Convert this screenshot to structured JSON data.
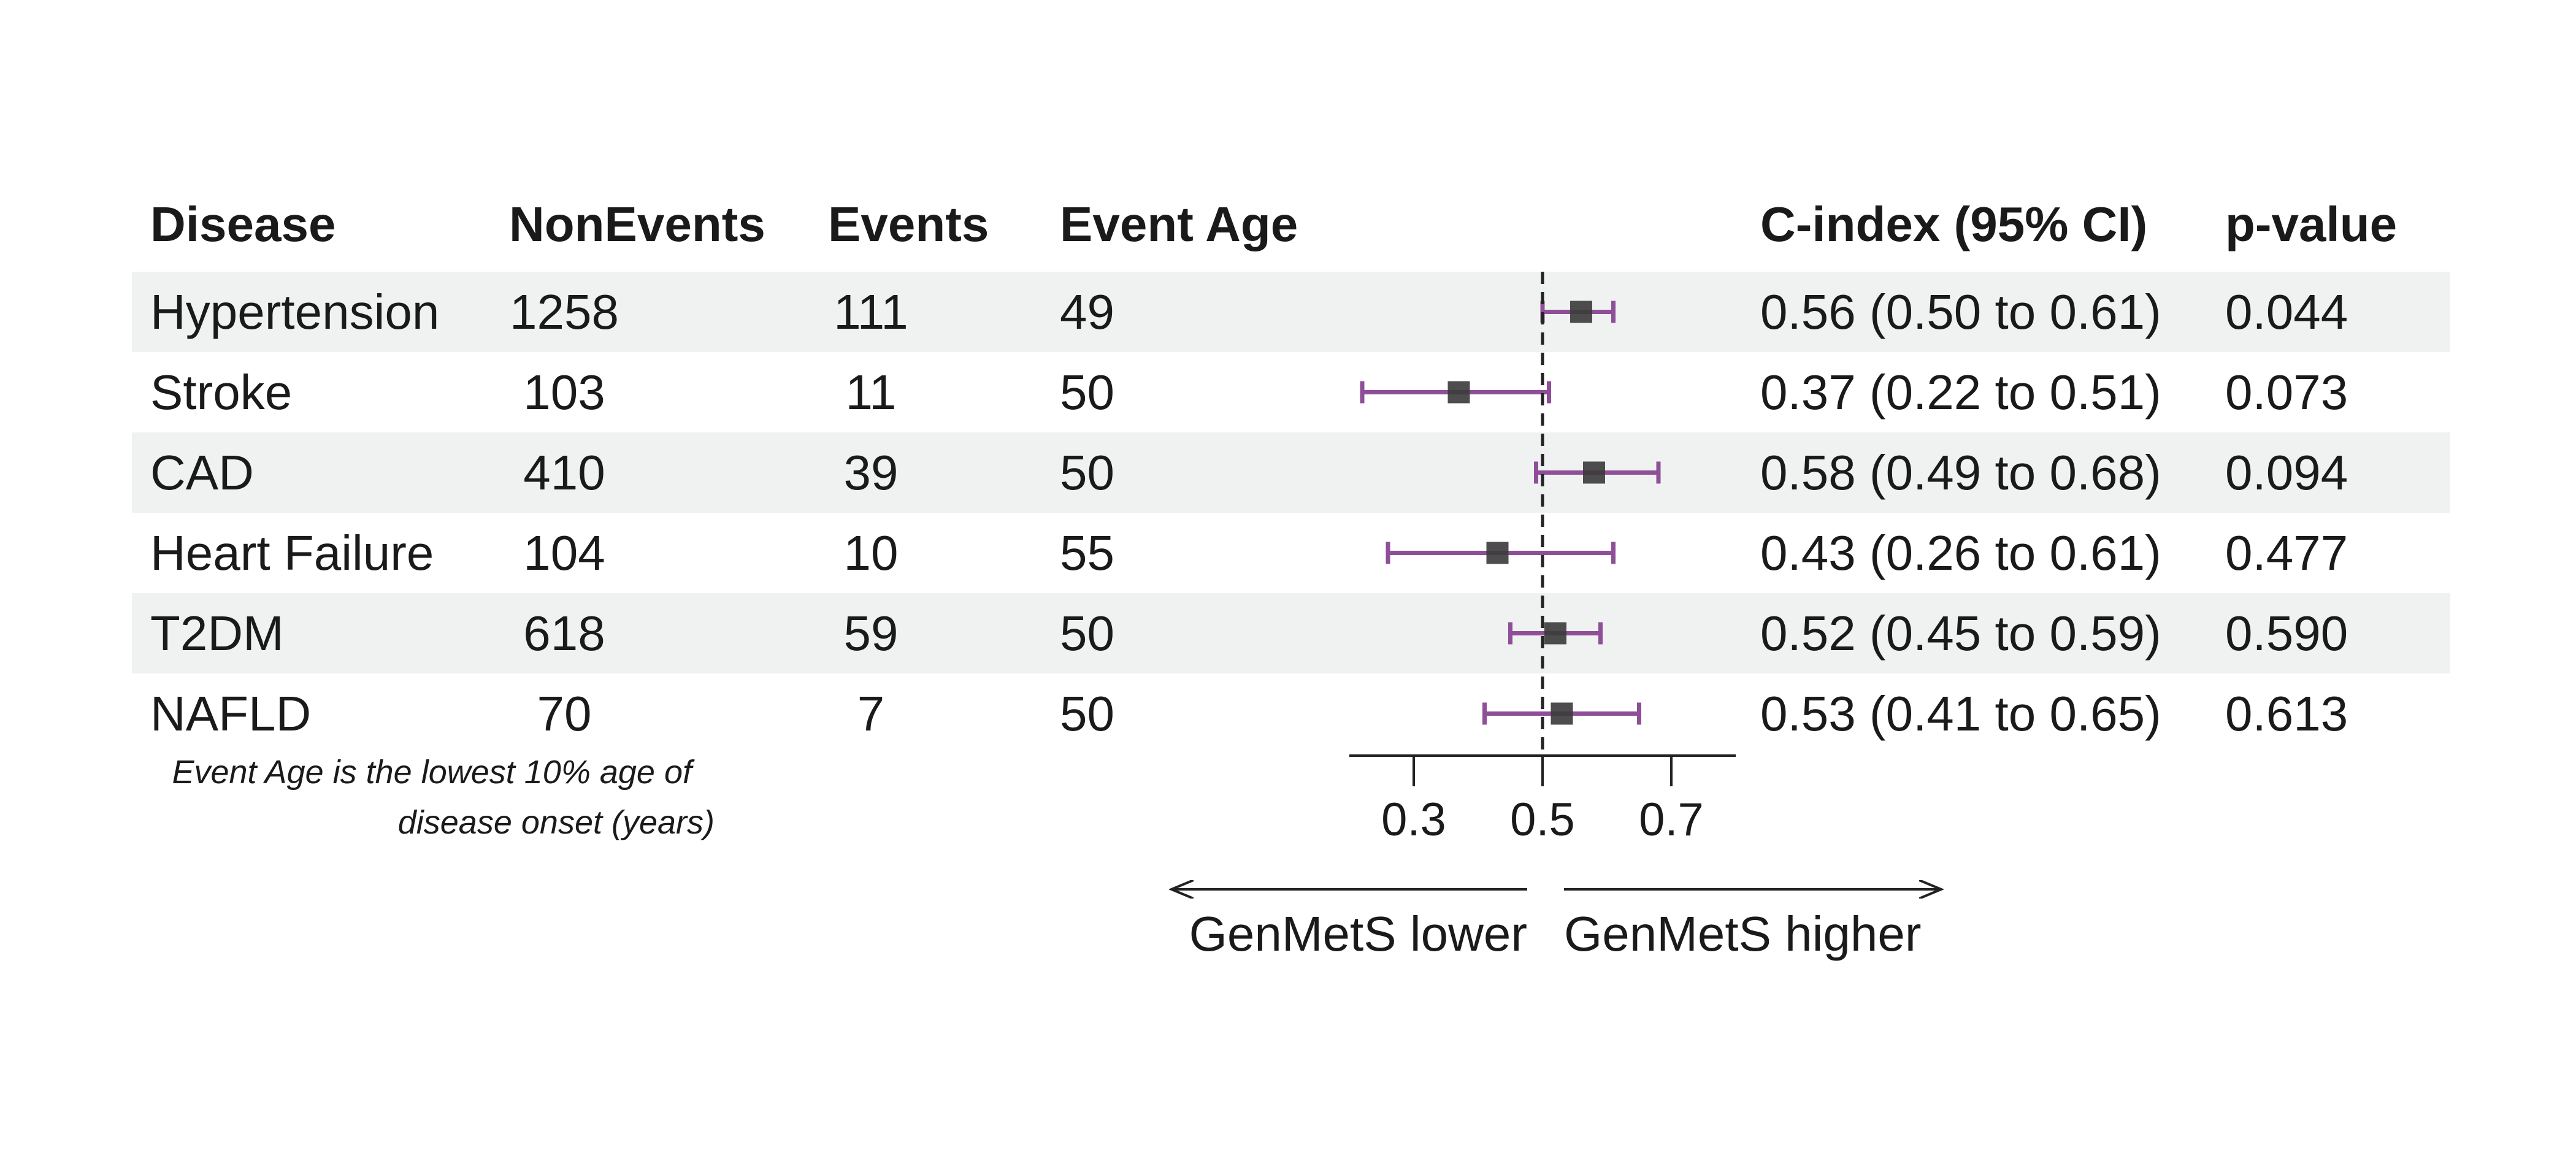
{
  "headers": {
    "disease": "Disease",
    "nonevents": "NonEvents",
    "events": "Events",
    "event_age": "Event Age",
    "cindex": "C-index (95% CI)",
    "pvalue": "p-value"
  },
  "rows": [
    {
      "disease": "Hypertension",
      "nonevents": "1258",
      "events": "111",
      "event_age": "49",
      "cindex": "0.56 (0.50 to 0.61)",
      "pvalue": "0.044"
    },
    {
      "disease": "Stroke",
      "nonevents": "103",
      "events": "11",
      "event_age": "50",
      "cindex": "0.37 (0.22 to 0.51)",
      "pvalue": "0.073"
    },
    {
      "disease": "CAD",
      "nonevents": "410",
      "events": "39",
      "event_age": "50",
      "cindex": "0.58 (0.49 to 0.68)",
      "pvalue": "0.094"
    },
    {
      "disease": "Heart Failure",
      "nonevents": "104",
      "events": "10",
      "event_age": "55",
      "cindex": "0.43 (0.26 to 0.61)",
      "pvalue": "0.477"
    },
    {
      "disease": "T2DM",
      "nonevents": "618",
      "events": "59",
      "event_age": "50",
      "cindex": "0.52 (0.45 to 0.59)",
      "pvalue": "0.590"
    },
    {
      "disease": "NAFLD",
      "nonevents": "70",
      "events": "7",
      "event_age": "50",
      "cindex": "0.53 (0.41 to 0.65)",
      "pvalue": "0.613"
    }
  ],
  "footnote": {
    "line1": "Event Age is the lowest 10% age of",
    "line2": "disease onset (years)"
  },
  "colors": {
    "ci_line": "#8e4f98",
    "point": "#3a3a3a",
    "shade": "#f0f2f1",
    "axis": "#222222"
  },
  "chart_data": {
    "type": "forest",
    "categories": [
      "Hypertension",
      "Stroke",
      "CAD",
      "Heart Failure",
      "T2DM",
      "NAFLD"
    ],
    "estimates": [
      0.56,
      0.37,
      0.58,
      0.43,
      0.52,
      0.53
    ],
    "ci_lower": [
      0.5,
      0.22,
      0.49,
      0.26,
      0.45,
      0.41
    ],
    "ci_upper": [
      0.61,
      0.51,
      0.68,
      0.61,
      0.59,
      0.65
    ],
    "reference_line": 0.5,
    "xlim": [
      0.2,
      0.8
    ],
    "xticks": [
      0.3,
      0.5,
      0.7
    ],
    "xtick_labels": [
      "0.3",
      "0.5",
      "0.7"
    ],
    "arrow_left_label": "GenMetS lower",
    "arrow_right_label": "GenMetS higher"
  }
}
